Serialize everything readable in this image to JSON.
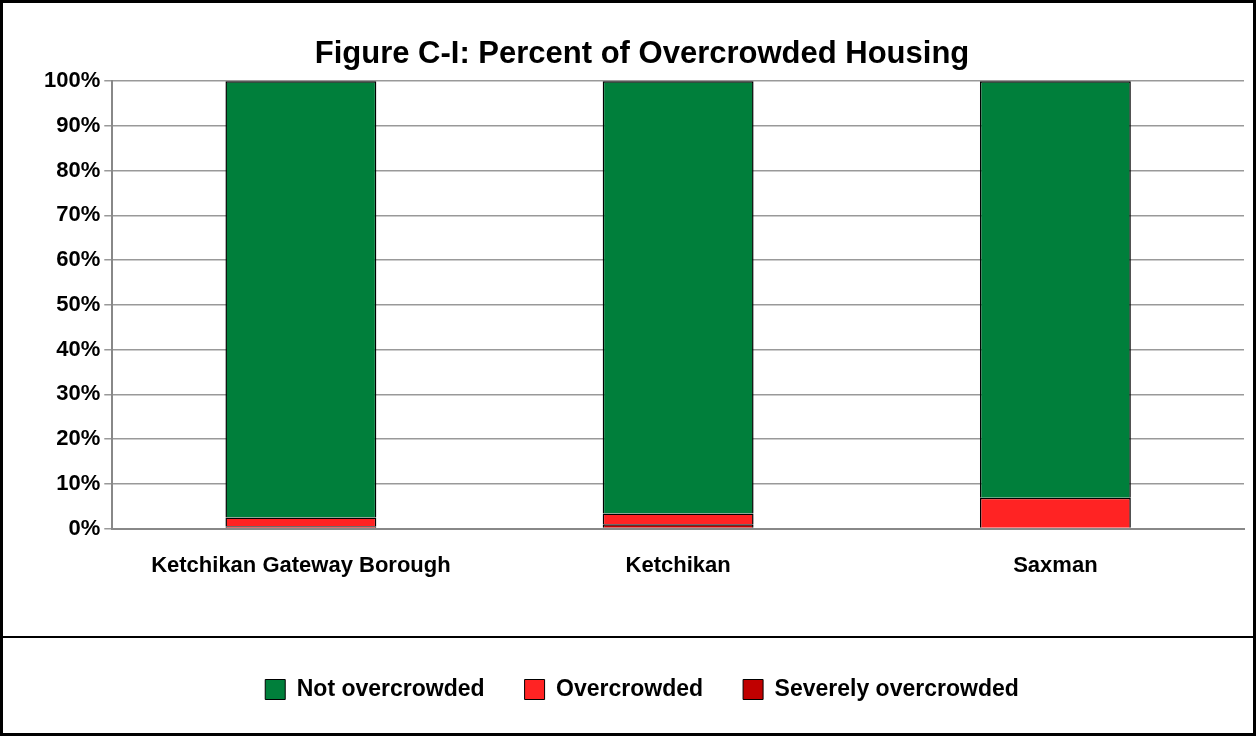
{
  "chart_data": {
    "type": "bar",
    "title": "Figure C-I: Percent of Overcrowded Housing",
    "categories": [
      "Ketchikan Gateway Borough",
      "Ketchikan",
      "Saxman"
    ],
    "stacked": true,
    "series": [
      {
        "name": "Severely overcrowded",
        "color": "#c00000",
        "values": [
          0.5,
          1.0,
          0
        ]
      },
      {
        "name": "Overcrowded",
        "color": "#ff2323",
        "values": [
          2.0,
          2.4,
          6.9
        ]
      },
      {
        "name": "Not overcrowded",
        "color": "#007f3b",
        "values": [
          97.5,
          96.6,
          93.1
        ]
      }
    ],
    "ylim": [
      0,
      100
    ],
    "yticks": [
      {
        "value": 0,
        "label": "0%"
      },
      {
        "value": 10,
        "label": "10%"
      },
      {
        "value": 20,
        "label": "20%"
      },
      {
        "value": 30,
        "label": "30%"
      },
      {
        "value": 40,
        "label": "40%"
      },
      {
        "value": 50,
        "label": "50%"
      },
      {
        "value": 60,
        "label": "60%"
      },
      {
        "value": 70,
        "label": "70%"
      },
      {
        "value": 80,
        "label": "80%"
      },
      {
        "value": 90,
        "label": "90%"
      },
      {
        "value": 100,
        "label": "100%"
      }
    ],
    "grid": "y",
    "legend": "bottom"
  }
}
